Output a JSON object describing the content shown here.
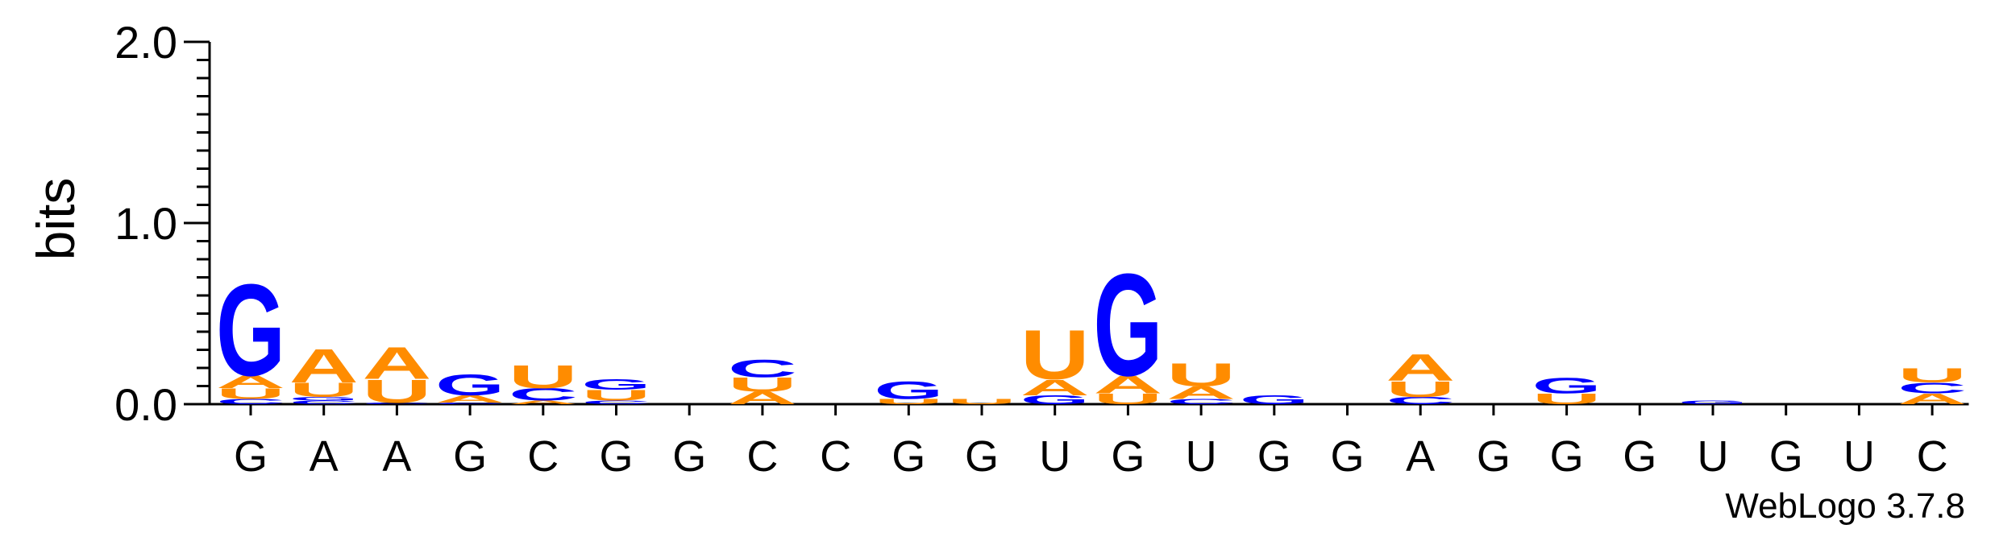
{
  "chart_data": {
    "type": "sequence-logo",
    "ylabel": "bits",
    "ylim": [
      0,
      2.0
    ],
    "y_ticks": [
      "0.0",
      "1.0",
      "2.0"
    ],
    "y_tick_values": [
      0,
      1,
      2
    ],
    "positions": [
      "G",
      "A",
      "A",
      "G",
      "C",
      "G",
      "G",
      "C",
      "C",
      "G",
      "G",
      "U",
      "G",
      "U",
      "G",
      "G",
      "A",
      "G",
      "G",
      "G",
      "U",
      "G",
      "U",
      "C"
    ],
    "colors": {
      "G": "#0000ff",
      "C": "#0000ff",
      "A": "#ff8c00",
      "U": "#ff8c00"
    },
    "stacks": [
      [
        [
          "C",
          0.03
        ],
        [
          "U",
          0.06
        ],
        [
          "A",
          0.07
        ],
        [
          "G",
          0.52
        ]
      ],
      [
        [
          "C",
          0.02
        ],
        [
          "G",
          0.02
        ],
        [
          "U",
          0.08
        ],
        [
          "A",
          0.19
        ]
      ],
      [
        [
          "C",
          0.01
        ],
        [
          "U",
          0.13
        ],
        [
          "A",
          0.18
        ]
      ],
      [
        [
          "C",
          0.01
        ],
        [
          "A",
          0.04
        ],
        [
          "G",
          0.12
        ]
      ],
      [
        [
          "A",
          0.02
        ],
        [
          "C",
          0.07
        ],
        [
          "U",
          0.13
        ]
      ],
      [
        [
          "C",
          0.02
        ],
        [
          "U",
          0.06
        ],
        [
          "G",
          0.06
        ]
      ],
      [],
      [
        [
          "A",
          0.07
        ],
        [
          "U",
          0.08
        ],
        [
          "C",
          0.1
        ]
      ],
      [],
      [
        [
          "U",
          0.03
        ],
        [
          "G",
          0.1
        ]
      ],
      [
        [
          "U",
          0.03
        ]
      ],
      [
        [
          "G",
          0.05
        ],
        [
          "A",
          0.09
        ],
        [
          "U",
          0.28
        ]
      ],
      [
        [
          "U",
          0.06
        ],
        [
          "A",
          0.1
        ],
        [
          "G",
          0.58
        ]
      ],
      [
        [
          "C",
          0.03
        ],
        [
          "A",
          0.07
        ],
        [
          "U",
          0.13
        ]
      ],
      [
        [
          "G",
          0.05
        ]
      ],
      [],
      [
        [
          "C",
          0.04
        ],
        [
          "U",
          0.09
        ],
        [
          "A",
          0.15
        ]
      ],
      [],
      [
        [
          "U",
          0.06
        ],
        [
          "G",
          0.09
        ]
      ],
      [],
      [
        [
          "G",
          0.02
        ]
      ],
      [],
      [],
      [
        [
          "A",
          0.06
        ],
        [
          "C",
          0.06
        ],
        [
          "U",
          0.08
        ]
      ]
    ]
  },
  "version_label": "WebLogo 3.7.8"
}
